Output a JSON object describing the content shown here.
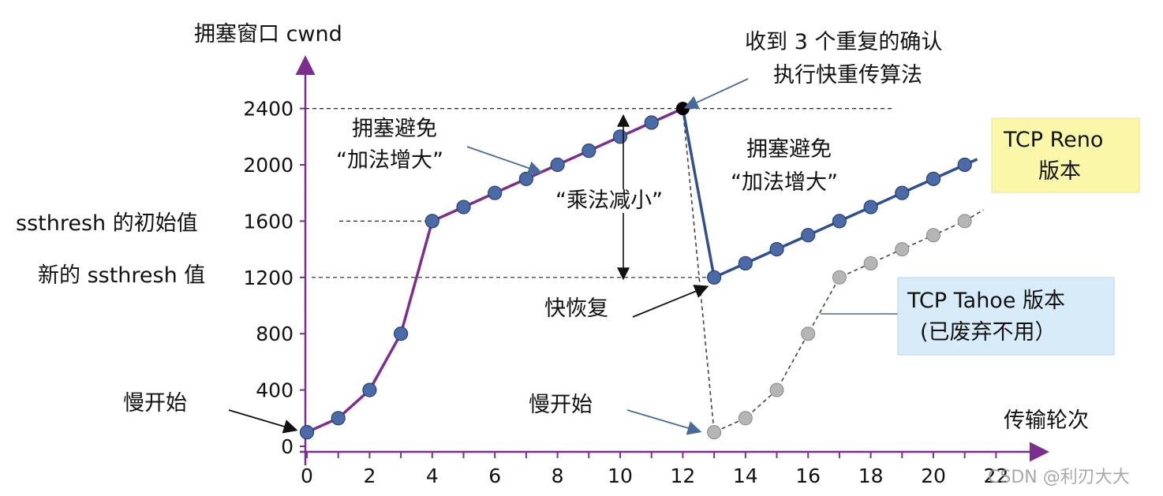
{
  "chart_data": {
    "type": "line",
    "ylabel": "拥塞窗口 cwnd",
    "xlabel": "传输轮次",
    "xlim": [
      0,
      23
    ],
    "ylim": [
      0,
      2600
    ],
    "x_ticks": [
      "0",
      "2",
      "4",
      "6",
      "8",
      "10",
      "12",
      "14",
      "16",
      "18",
      "20",
      "22"
    ],
    "y_ticks": [
      "0",
      "400",
      "800",
      "1200",
      "1600",
      "2000",
      "2400"
    ],
    "series": [
      {
        "name": "TCP Reno 版本",
        "color": "#7b2e8e",
        "color_after": "#2f4f8f",
        "points": [
          [
            0,
            100
          ],
          [
            1,
            200
          ],
          [
            2,
            400
          ],
          [
            3,
            800
          ],
          [
            4,
            1600
          ],
          [
            5,
            1700
          ],
          [
            6,
            1800
          ],
          [
            7,
            1900
          ],
          [
            8,
            2000
          ],
          [
            9,
            2100
          ],
          [
            10,
            2200
          ],
          [
            11,
            2300
          ],
          [
            12,
            2400
          ],
          [
            13,
            1200
          ],
          [
            14,
            1300
          ],
          [
            15,
            1400
          ],
          [
            16,
            1500
          ],
          [
            17,
            1600
          ],
          [
            18,
            1700
          ],
          [
            19,
            1800
          ],
          [
            20,
            1900
          ],
          [
            21,
            2000
          ]
        ]
      },
      {
        "name": "TCP Tahoe 版本",
        "color": "#555555",
        "points": [
          [
            13,
            100
          ],
          [
            14,
            200
          ],
          [
            15,
            400
          ],
          [
            16,
            800
          ],
          [
            17,
            1200
          ],
          [
            18,
            1300
          ],
          [
            19,
            1400
          ],
          [
            20,
            1500
          ],
          [
            21,
            1600
          ]
        ]
      }
    ],
    "annotations": {
      "ssthresh_initial": "ssthresh 的初始值",
      "ssthresh_new": "新的 ssthresh 值",
      "slow_start_1": "慢开始",
      "slow_start_2": "慢开始",
      "ca1_line1": "拥塞避免",
      "ca1_line2": "“加法增大”",
      "ca2_line1": "拥塞避免",
      "ca2_line2": "“加法增大”",
      "md": "“乘法减小”",
      "dup_ack_line1": "收到 3 个重复的确认",
      "dup_ack_line2": "执行快重传算法",
      "fast_recovery": "快恢复",
      "reno_line1": "TCP Reno",
      "reno_line2": "版本",
      "tahoe_line1": "TCP Tahoe 版本",
      "tahoe_line2": "(已废弃不用）",
      "watermark": "CSDN @利刃大大"
    },
    "colors": {
      "reno_box": "#fbf7a8",
      "tahoe_box": "#d8ebf8",
      "axis": "#7b2e8e"
    }
  }
}
